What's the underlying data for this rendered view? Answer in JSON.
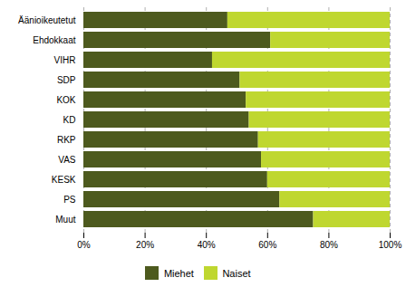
{
  "chart_data": {
    "type": "bar",
    "orientation": "horizontal",
    "stacked": true,
    "categories": [
      "Äänioikeutetut",
      "Ehdokkaat",
      "VIHR",
      "SDP",
      "KOK",
      "KD",
      "RKP",
      "VAS",
      "KESK",
      "PS",
      "Muut"
    ],
    "series": [
      {
        "name": "Miehet",
        "color": "#4d5a1e",
        "values": [
          47,
          61,
          42,
          51,
          53,
          54,
          57,
          58,
          60,
          64,
          75
        ]
      },
      {
        "name": "Naiset",
        "color": "#bfd730",
        "values": [
          53,
          39,
          58,
          49,
          47,
          46,
          43,
          42,
          40,
          36,
          25
        ]
      }
    ],
    "xlim": [
      0,
      100
    ],
    "xticks": [
      {
        "value": 0,
        "label": "0%"
      },
      {
        "value": 20,
        "label": "20%"
      },
      {
        "value": 40,
        "label": "40%"
      },
      {
        "value": 60,
        "label": "60%"
      },
      {
        "value": 80,
        "label": "80%"
      },
      {
        "value": 100,
        "label": "100%"
      }
    ],
    "grid": true,
    "legend": "bottom"
  }
}
